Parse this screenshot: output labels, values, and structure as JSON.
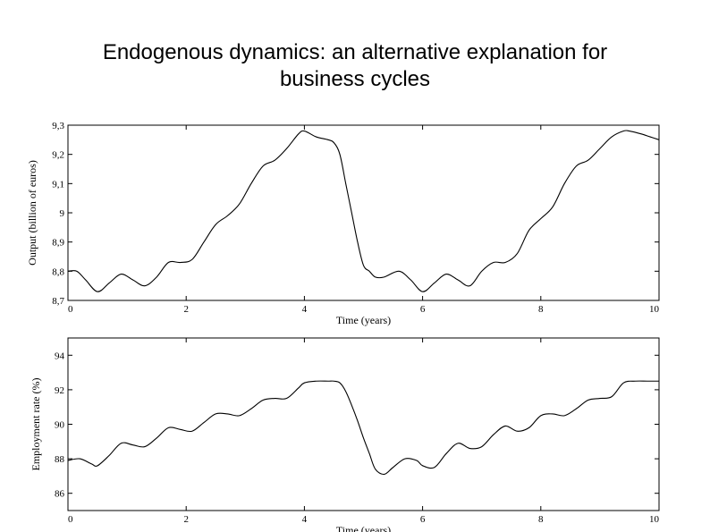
{
  "slide": {
    "title_line1": "Endogenous dynamics: an alternative explanation for",
    "title_line2": "business cycles"
  },
  "chart_data": [
    {
      "type": "line",
      "xlabel": "Time (years)",
      "ylabel": "Output (billion of euros)",
      "xlim": [
        0,
        10
      ],
      "ylim": [
        8.7,
        9.3
      ],
      "xticks": [
        "0",
        "2",
        "4",
        "6",
        "8",
        "10"
      ],
      "yticks": [
        "8,7",
        "8,8",
        "8,9",
        "9",
        "9,1",
        "9,2",
        "9,3"
      ],
      "grid": false,
      "series": [
        {
          "x": [
            0,
            0.15,
            0.3,
            0.5,
            0.7,
            0.9,
            1.1,
            1.3,
            1.5,
            1.7,
            1.9,
            2.1,
            2.3,
            2.5,
            2.7,
            2.9,
            3.1,
            3.3,
            3.5,
            3.7,
            3.9,
            4.0,
            4.2,
            4.4,
            4.5,
            4.6,
            4.7,
            4.8,
            4.9,
            5.0,
            5.1,
            5.2,
            5.35,
            5.6,
            5.8,
            6.0,
            6.2,
            6.4,
            6.6,
            6.8,
            7.0,
            7.2,
            7.4,
            7.6,
            7.8,
            8.0,
            8.2,
            8.4,
            8.6,
            8.8,
            9.0,
            9.2,
            9.4,
            9.5,
            9.7,
            9.85,
            10.0
          ],
          "y": [
            8.8,
            8.8,
            8.77,
            8.73,
            8.76,
            8.79,
            8.77,
            8.75,
            8.78,
            8.83,
            8.83,
            8.84,
            8.9,
            8.96,
            8.99,
            9.03,
            9.1,
            9.16,
            9.18,
            9.22,
            9.27,
            9.28,
            9.26,
            9.25,
            9.24,
            9.2,
            9.1,
            9.0,
            8.9,
            8.82,
            8.8,
            8.78,
            8.78,
            8.8,
            8.77,
            8.73,
            8.76,
            8.79,
            8.77,
            8.75,
            8.8,
            8.83,
            8.83,
            8.86,
            8.94,
            8.98,
            9.02,
            9.1,
            9.16,
            9.18,
            9.22,
            9.26,
            9.28,
            9.28,
            9.27,
            9.26,
            9.25
          ]
        }
      ]
    },
    {
      "type": "line",
      "xlabel": "Time (years)",
      "ylabel": "Employment rate (%)",
      "xlim": [
        0,
        10
      ],
      "ylim": [
        85,
        95
      ],
      "xticks": [
        "0",
        "2",
        "4",
        "6",
        "8",
        "10"
      ],
      "yticks": [
        "86",
        "88",
        "90",
        "92",
        "94"
      ],
      "grid": false,
      "series": [
        {
          "x": [
            0,
            0.2,
            0.4,
            0.5,
            0.7,
            0.9,
            1.1,
            1.3,
            1.5,
            1.7,
            1.9,
            2.1,
            2.3,
            2.5,
            2.7,
            2.9,
            3.1,
            3.3,
            3.5,
            3.7,
            3.9,
            4.0,
            4.2,
            4.4,
            4.5,
            4.6,
            4.7,
            4.8,
            4.9,
            5.0,
            5.1,
            5.2,
            5.35,
            5.5,
            5.7,
            5.9,
            6.0,
            6.2,
            6.4,
            6.6,
            6.8,
            7.0,
            7.2,
            7.4,
            7.6,
            7.8,
            8.0,
            8.2,
            8.4,
            8.6,
            8.8,
            9.0,
            9.2,
            9.4,
            9.6,
            9.8,
            10.0
          ],
          "y": [
            87.9,
            88.0,
            87.7,
            87.6,
            88.2,
            88.9,
            88.8,
            88.7,
            89.2,
            89.8,
            89.7,
            89.6,
            90.1,
            90.6,
            90.6,
            90.5,
            90.9,
            91.4,
            91.5,
            91.5,
            92.1,
            92.4,
            92.5,
            92.5,
            92.5,
            92.4,
            91.9,
            91.1,
            90.2,
            89.2,
            88.3,
            87.4,
            87.1,
            87.5,
            88.0,
            87.9,
            87.6,
            87.5,
            88.3,
            88.9,
            88.6,
            88.7,
            89.4,
            89.9,
            89.6,
            89.8,
            90.5,
            90.6,
            90.5,
            90.9,
            91.4,
            91.5,
            91.6,
            92.4,
            92.5,
            92.5,
            92.5
          ]
        }
      ]
    }
  ]
}
